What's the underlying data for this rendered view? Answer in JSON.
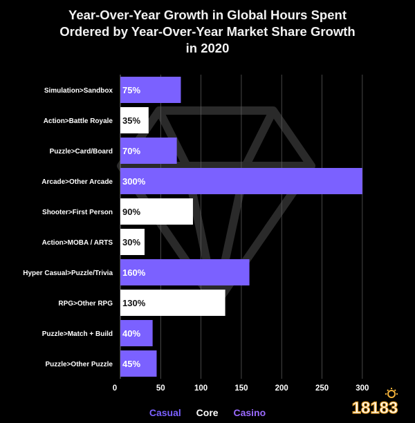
{
  "chart_data": {
    "type": "bar",
    "orientation": "horizontal",
    "title_lines": [
      "Year-Over-Year Growth in Global Hours Spent",
      "Ordered by Year-Over-Year Market Share Growth",
      "in 2020"
    ],
    "categories": [
      "Simulation>Sandbox",
      "Action>Battle Royale",
      "Puzzle>Card/Board",
      "Arcade>Other Arcade",
      "Shooter>First Person",
      "Action>MOBA / ARTS",
      "Hyper Casual>Puzzle/Trivia",
      "RPG>Other RPG",
      "Puzzle>Match + Build",
      "Puzzle>Other Puzzle"
    ],
    "values": [
      75,
      35,
      70,
      300,
      90,
      30,
      160,
      130,
      40,
      45
    ],
    "value_labels": [
      "75%",
      "35%",
      "70%",
      "300%",
      "90%",
      "30%",
      "160%",
      "130%",
      "40%",
      "45%"
    ],
    "bar_group": [
      "Casual",
      "Core",
      "Casual",
      "Casual",
      "Core",
      "Core",
      "Casual",
      "Core",
      "Casual",
      "Casual"
    ],
    "x_ticks": [
      0,
      50,
      100,
      150,
      200,
      250,
      300
    ],
    "x_tick_labels": [
      "0",
      "50",
      "100",
      "150",
      "200",
      "250",
      "300"
    ],
    "xlim": [
      0,
      325
    ],
    "grid": true,
    "legend": {
      "placement": "bottom",
      "entries": [
        {
          "label": "Casual",
          "color": "#7b61ff"
        },
        {
          "label": "Core",
          "color": "#ffffff"
        },
        {
          "label": "Casino",
          "color": "#9b6bff"
        }
      ]
    },
    "colors": {
      "Casual": "#7b61ff",
      "Core": "#ffffff",
      "label_on_casual": "#ffffff",
      "label_on_core": "#111111",
      "grid": "#5a5a5a",
      "text": "#ffffff"
    }
  },
  "watermark_text": "18183"
}
